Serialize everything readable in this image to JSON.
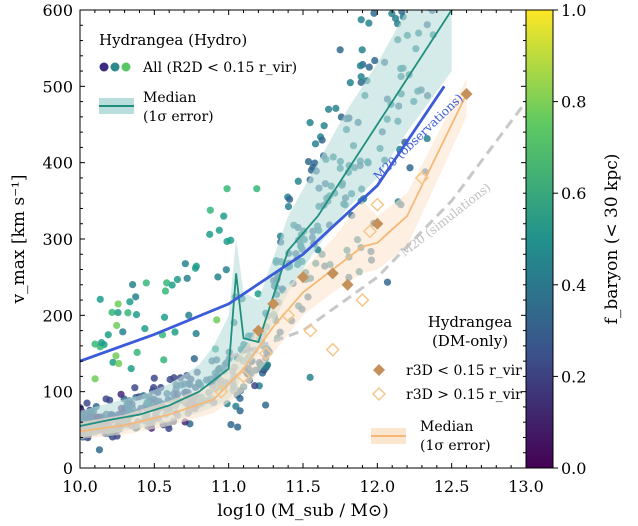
{
  "chart_data": {
    "type": "scatter",
    "title": "",
    "xlabel": "log10 (M_sub / M⊙)",
    "ylabel": "v_max [km s⁻¹]",
    "xlim": [
      10.0,
      13.0
    ],
    "ylim": [
      0,
      600
    ],
    "x_ticks": [
      "10.0",
      "10.5",
      "11.0",
      "11.5",
      "12.0",
      "12.5",
      "13.0"
    ],
    "y_ticks": [
      "0",
      "100",
      "200",
      "300",
      "400",
      "500",
      "600"
    ],
    "colorbar": {
      "label": "f_baryon (< 30 kpc)",
      "range": [
        0.0,
        1.0
      ],
      "ticks": [
        "0.0",
        "0.2",
        "0.4",
        "0.6",
        "0.8",
        "1.0"
      ],
      "colormap": [
        "#440154",
        "#3b528b",
        "#21918c",
        "#5ec962",
        "#fde725"
      ]
    },
    "legend_hydro": {
      "title": "Hydrangea (Hydro)",
      "points_label": "All (R2D < 0.15 r_vir)",
      "median_label": "Median",
      "median_sub": "(1σ error)"
    },
    "legend_dm": {
      "title": "Hydrangea",
      "title_sub": "(DM-only)",
      "inner_label": "r3D < 0.15 r_vir",
      "outer_label": "r3D > 0.15 r_vir",
      "median_label": "Median",
      "median_sub": "(1σ error)"
    },
    "annotations": {
      "m20_obs": "M20 (observations)",
      "m20_sim": "M20 (simulations)"
    },
    "colors": {
      "hydro_median": "#1f8f7f",
      "hydro_band": "#b9dedb",
      "dm_median": "#f5b877",
      "dm_band": "#fbe6cf",
      "m20_obs": "#3b5bd9",
      "m20_sim": "#c8c8c8",
      "dm_inner_marker": "#c4915a",
      "dm_outer_marker": "#f5c78c"
    },
    "hydro_median": {
      "x": [
        10.0,
        10.2,
        10.4,
        10.6,
        10.8,
        10.9,
        11.0,
        11.05,
        11.1,
        11.2,
        11.4,
        11.6,
        11.8,
        12.0,
        12.2,
        12.5
      ],
      "y": [
        55,
        63,
        70,
        82,
        100,
        115,
        130,
        255,
        170,
        165,
        285,
        330,
        390,
        450,
        510,
        600
      ],
      "lo": [
        40,
        45,
        52,
        60,
        72,
        80,
        90,
        100,
        130,
        150,
        230,
        290,
        340,
        380,
        440,
        520
      ],
      "hi": [
        75,
        85,
        95,
        110,
        135,
        160,
        200,
        300,
        230,
        220,
        330,
        400,
        470,
        530,
        600,
        640
      ]
    },
    "dm_median": {
      "x": [
        10.0,
        10.3,
        10.6,
        10.9,
        11.1,
        11.3,
        11.5,
        11.7,
        11.9,
        12.0,
        12.2,
        12.6
      ],
      "y": [
        48,
        56,
        70,
        90,
        130,
        185,
        230,
        260,
        290,
        295,
        330,
        490
      ],
      "lo": [
        38,
        44,
        55,
        72,
        100,
        150,
        200,
        230,
        255,
        260,
        290,
        460
      ],
      "hi": [
        60,
        70,
        88,
        110,
        155,
        215,
        260,
        300,
        350,
        330,
        360,
        510
      ]
    },
    "m20_observations": {
      "x": [
        10.0,
        10.5,
        11.0,
        11.5,
        12.0,
        12.45
      ],
      "y": [
        140,
        175,
        215,
        280,
        370,
        500
      ]
    },
    "m20_simulations": {
      "x": [
        11.0,
        11.5,
        12.0,
        12.5,
        13.0
      ],
      "y": [
        145,
        180,
        250,
        350,
        480
      ]
    },
    "dm_inner_points": {
      "x": [
        11.3,
        11.5,
        11.8,
        11.7,
        12.0,
        12.6,
        11.2
      ],
      "y": [
        215,
        250,
        240,
        255,
        320,
        490,
        180
      ],
      "note": "filled diamonds"
    },
    "dm_outer_points": {
      "x": [
        11.4,
        11.55,
        11.7,
        11.9,
        11.95,
        12.0,
        12.3,
        11.25,
        11.1,
        10.95
      ],
      "y": [
        200,
        180,
        155,
        220,
        310,
        345,
        380,
        150,
        120,
        100
      ],
      "note": "open diamonds"
    }
  }
}
